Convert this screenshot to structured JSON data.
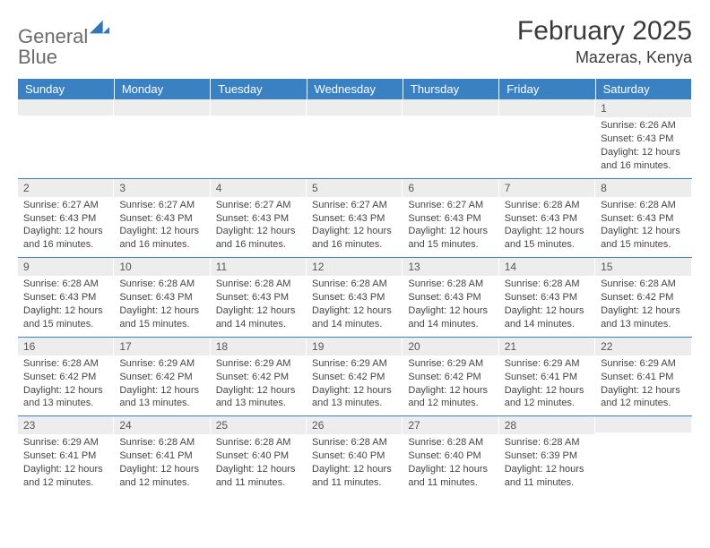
{
  "brand": {
    "text_a": "General",
    "text_b": "Blue",
    "mark_color": "#2f76bd",
    "text_a_color": "#6b6b6b"
  },
  "title": "February 2025",
  "location": "Mazeras, Kenya",
  "colors": {
    "header_bg": "#3a81c4",
    "header_text": "#ffffff",
    "daynum_bg": "#ededed",
    "rule": "#3a81c4",
    "body_text": "#444444"
  },
  "weekdays": [
    "Sunday",
    "Monday",
    "Tuesday",
    "Wednesday",
    "Thursday",
    "Friday",
    "Saturday"
  ],
  "weeks": [
    [
      {
        "n": "",
        "sunrise": "",
        "sunset": "",
        "daylight": ""
      },
      {
        "n": "",
        "sunrise": "",
        "sunset": "",
        "daylight": ""
      },
      {
        "n": "",
        "sunrise": "",
        "sunset": "",
        "daylight": ""
      },
      {
        "n": "",
        "sunrise": "",
        "sunset": "",
        "daylight": ""
      },
      {
        "n": "",
        "sunrise": "",
        "sunset": "",
        "daylight": ""
      },
      {
        "n": "",
        "sunrise": "",
        "sunset": "",
        "daylight": ""
      },
      {
        "n": "1",
        "sunrise": "Sunrise: 6:26 AM",
        "sunset": "Sunset: 6:43 PM",
        "daylight": "Daylight: 12 hours and 16 minutes."
      }
    ],
    [
      {
        "n": "2",
        "sunrise": "Sunrise: 6:27 AM",
        "sunset": "Sunset: 6:43 PM",
        "daylight": "Daylight: 12 hours and 16 minutes."
      },
      {
        "n": "3",
        "sunrise": "Sunrise: 6:27 AM",
        "sunset": "Sunset: 6:43 PM",
        "daylight": "Daylight: 12 hours and 16 minutes."
      },
      {
        "n": "4",
        "sunrise": "Sunrise: 6:27 AM",
        "sunset": "Sunset: 6:43 PM",
        "daylight": "Daylight: 12 hours and 16 minutes."
      },
      {
        "n": "5",
        "sunrise": "Sunrise: 6:27 AM",
        "sunset": "Sunset: 6:43 PM",
        "daylight": "Daylight: 12 hours and 16 minutes."
      },
      {
        "n": "6",
        "sunrise": "Sunrise: 6:27 AM",
        "sunset": "Sunset: 6:43 PM",
        "daylight": "Daylight: 12 hours and 15 minutes."
      },
      {
        "n": "7",
        "sunrise": "Sunrise: 6:28 AM",
        "sunset": "Sunset: 6:43 PM",
        "daylight": "Daylight: 12 hours and 15 minutes."
      },
      {
        "n": "8",
        "sunrise": "Sunrise: 6:28 AM",
        "sunset": "Sunset: 6:43 PM",
        "daylight": "Daylight: 12 hours and 15 minutes."
      }
    ],
    [
      {
        "n": "9",
        "sunrise": "Sunrise: 6:28 AM",
        "sunset": "Sunset: 6:43 PM",
        "daylight": "Daylight: 12 hours and 15 minutes."
      },
      {
        "n": "10",
        "sunrise": "Sunrise: 6:28 AM",
        "sunset": "Sunset: 6:43 PM",
        "daylight": "Daylight: 12 hours and 15 minutes."
      },
      {
        "n": "11",
        "sunrise": "Sunrise: 6:28 AM",
        "sunset": "Sunset: 6:43 PM",
        "daylight": "Daylight: 12 hours and 14 minutes."
      },
      {
        "n": "12",
        "sunrise": "Sunrise: 6:28 AM",
        "sunset": "Sunset: 6:43 PM",
        "daylight": "Daylight: 12 hours and 14 minutes."
      },
      {
        "n": "13",
        "sunrise": "Sunrise: 6:28 AM",
        "sunset": "Sunset: 6:43 PM",
        "daylight": "Daylight: 12 hours and 14 minutes."
      },
      {
        "n": "14",
        "sunrise": "Sunrise: 6:28 AM",
        "sunset": "Sunset: 6:43 PM",
        "daylight": "Daylight: 12 hours and 14 minutes."
      },
      {
        "n": "15",
        "sunrise": "Sunrise: 6:28 AM",
        "sunset": "Sunset: 6:42 PM",
        "daylight": "Daylight: 12 hours and 13 minutes."
      }
    ],
    [
      {
        "n": "16",
        "sunrise": "Sunrise: 6:28 AM",
        "sunset": "Sunset: 6:42 PM",
        "daylight": "Daylight: 12 hours and 13 minutes."
      },
      {
        "n": "17",
        "sunrise": "Sunrise: 6:29 AM",
        "sunset": "Sunset: 6:42 PM",
        "daylight": "Daylight: 12 hours and 13 minutes."
      },
      {
        "n": "18",
        "sunrise": "Sunrise: 6:29 AM",
        "sunset": "Sunset: 6:42 PM",
        "daylight": "Daylight: 12 hours and 13 minutes."
      },
      {
        "n": "19",
        "sunrise": "Sunrise: 6:29 AM",
        "sunset": "Sunset: 6:42 PM",
        "daylight": "Daylight: 12 hours and 13 minutes."
      },
      {
        "n": "20",
        "sunrise": "Sunrise: 6:29 AM",
        "sunset": "Sunset: 6:42 PM",
        "daylight": "Daylight: 12 hours and 12 minutes."
      },
      {
        "n": "21",
        "sunrise": "Sunrise: 6:29 AM",
        "sunset": "Sunset: 6:41 PM",
        "daylight": "Daylight: 12 hours and 12 minutes."
      },
      {
        "n": "22",
        "sunrise": "Sunrise: 6:29 AM",
        "sunset": "Sunset: 6:41 PM",
        "daylight": "Daylight: 12 hours and 12 minutes."
      }
    ],
    [
      {
        "n": "23",
        "sunrise": "Sunrise: 6:29 AM",
        "sunset": "Sunset: 6:41 PM",
        "daylight": "Daylight: 12 hours and 12 minutes."
      },
      {
        "n": "24",
        "sunrise": "Sunrise: 6:28 AM",
        "sunset": "Sunset: 6:41 PM",
        "daylight": "Daylight: 12 hours and 12 minutes."
      },
      {
        "n": "25",
        "sunrise": "Sunrise: 6:28 AM",
        "sunset": "Sunset: 6:40 PM",
        "daylight": "Daylight: 12 hours and 11 minutes."
      },
      {
        "n": "26",
        "sunrise": "Sunrise: 6:28 AM",
        "sunset": "Sunset: 6:40 PM",
        "daylight": "Daylight: 12 hours and 11 minutes."
      },
      {
        "n": "27",
        "sunrise": "Sunrise: 6:28 AM",
        "sunset": "Sunset: 6:40 PM",
        "daylight": "Daylight: 12 hours and 11 minutes."
      },
      {
        "n": "28",
        "sunrise": "Sunrise: 6:28 AM",
        "sunset": "Sunset: 6:39 PM",
        "daylight": "Daylight: 12 hours and 11 minutes."
      },
      {
        "n": "",
        "sunrise": "",
        "sunset": "",
        "daylight": ""
      }
    ]
  ]
}
